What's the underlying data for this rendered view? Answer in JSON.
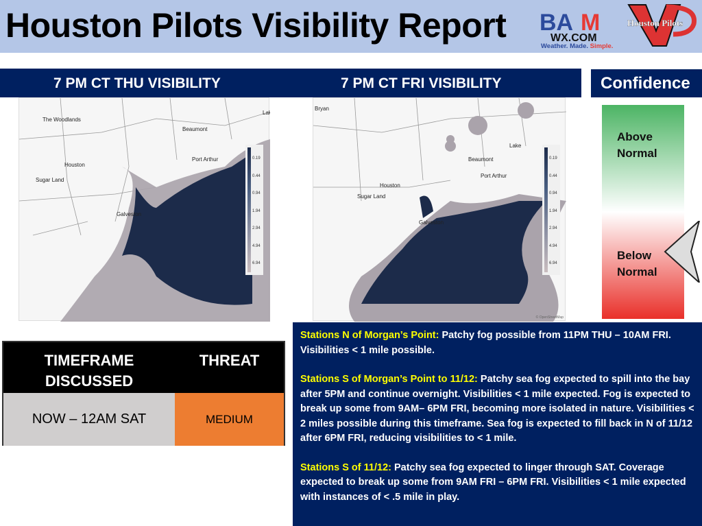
{
  "header": {
    "title": "Houston Pilots Visibility Report",
    "logo_bam": "BAM WX.COM Weather. Made. Simple.",
    "logo_hp": "Houston Pilots"
  },
  "maps": [
    {
      "title": "7 PM CT THU VISIBILITY",
      "labels": [
        "The Woodlands",
        "Beaumont",
        "Houston",
        "Sugar Land",
        "Port Arthur",
        "Galveston",
        "Lak"
      ]
    },
    {
      "title": "7 PM CT FRI VISIBILITY",
      "labels": [
        "Bryan",
        "Beaumont",
        "Lake",
        "Port Arthur",
        "Houston",
        "Sugar Land",
        "Galveston"
      ]
    }
  ],
  "legend": {
    "ticks": [
      "0.19",
      "0.44",
      "0.94",
      "1.94",
      "2.94",
      "4.94",
      "6.94"
    ],
    "colors": [
      "#1c2b4a",
      "#34486b",
      "#4a5f82",
      "#6c7994",
      "#8c90a3",
      "#aaa3ab",
      "#c9bdbf"
    ]
  },
  "attribution": "© OpenStreetMap",
  "confidence": {
    "title": "Confidence",
    "above": "Above Normal",
    "below": "Below Normal",
    "level": "Below Normal"
  },
  "table": {
    "col1": "TIMEFRAME DISCUSSED",
    "col2": "THREAT",
    "timeframe": "NOW – 12AM SAT",
    "threat": "MEDIUM",
    "threat_color": "#ed7d31"
  },
  "discussion": [
    {
      "label": "Stations N of Morgan’s Point:",
      "text": " Patchy fog possible from 11PM THU – 10AM FRI. Visibilities < 1 mile possible."
    },
    {
      "label": "Stations S of Morgan’s Point to 11/12:",
      "text": " Patchy sea fog expected to spill into the bay after 5PM and continue overnight. Visibilities < 1 mile expected. Fog is expected to break up some from 9AM– 6PM FRI, becoming more isolated in nature. Visibilities < 2 miles possible during this timeframe. Sea fog is expected to fill back in N of 11/12 after 6PM FRI, reducing visibilities to < 1 mile."
    },
    {
      "label": "Stations S of 11/12:",
      "text": " Patchy sea fog expected to linger through SAT. Coverage expected to break up some from 9AM FRI – 6PM FRI. Visibilities < 1 mile expected with instances of < .5 mile in play."
    }
  ]
}
